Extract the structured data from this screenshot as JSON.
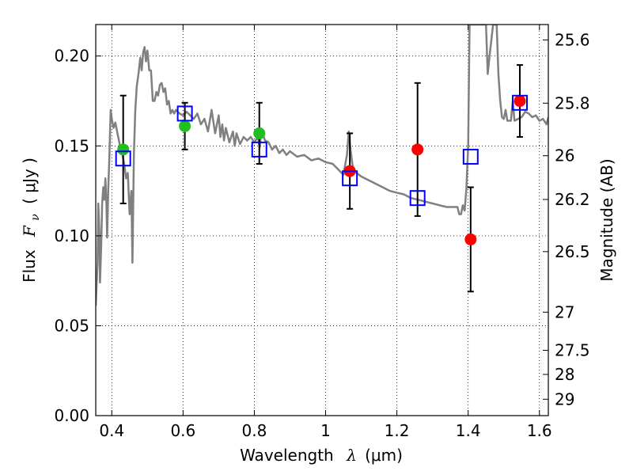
{
  "chart_data": {
    "type": "scatter",
    "xlabel": "Wavelength",
    "xlabel_symbol": "λ",
    "xlabel_unit": "(μm)",
    "ylabel": "Flux",
    "ylabel_symbol": "F",
    "ylabel_subscript": "ν",
    "ylabel_unit": "( μJy )",
    "ylabel_right": "Magnitude (AB)",
    "xlim": [
      0.355,
      1.625
    ],
    "ylim": [
      0.0,
      0.2175
    ],
    "grid": true,
    "x_ticks": [
      0.4,
      0.6,
      0.8,
      1.0,
      1.2,
      1.4,
      1.6
    ],
    "x_tick_labels": [
      "0.4",
      "0.6",
      "0.8",
      "1",
      "1.2",
      "1.4",
      "1.6"
    ],
    "y_ticks": [
      0.0,
      0.05,
      0.1,
      0.15,
      0.2
    ],
    "y_tick_labels": [
      "0.00",
      "0.05",
      "0.10",
      "0.15",
      "0.20"
    ],
    "mag_ticks": [
      "25.6",
      "25.8",
      "26",
      "26.2",
      "26.5",
      "27",
      "27.5",
      "28",
      "29"
    ],
    "colors": {
      "model": "#808080",
      "green": "#1fbf1f",
      "red": "#ff0000",
      "box": "#0000ff",
      "error": "#000000"
    },
    "series": [
      {
        "kind": "model-spectrum",
        "points": [
          [
            0.355,
            0.061
          ],
          [
            0.36,
            0.085
          ],
          [
            0.362,
            0.118
          ],
          [
            0.365,
            0.103
          ],
          [
            0.367,
            0.074
          ],
          [
            0.37,
            0.093
          ],
          [
            0.373,
            0.118
          ],
          [
            0.376,
            0.127
          ],
          [
            0.379,
            0.12
          ],
          [
            0.382,
            0.132
          ],
          [
            0.385,
            0.118
          ],
          [
            0.387,
            0.099
          ],
          [
            0.39,
            0.126
          ],
          [
            0.393,
            0.142
          ],
          [
            0.397,
            0.17
          ],
          [
            0.4,
            0.165
          ],
          [
            0.405,
            0.16
          ],
          [
            0.41,
            0.163
          ],
          [
            0.415,
            0.158
          ],
          [
            0.42,
            0.153
          ],
          [
            0.425,
            0.148
          ],
          [
            0.43,
            0.145
          ],
          [
            0.435,
            0.14
          ],
          [
            0.44,
            0.132
          ],
          [
            0.445,
            0.135
          ],
          [
            0.45,
            0.112
          ],
          [
            0.455,
            0.125
          ],
          [
            0.458,
            0.085
          ],
          [
            0.462,
            0.145
          ],
          [
            0.466,
            0.17
          ],
          [
            0.47,
            0.183
          ],
          [
            0.475,
            0.19
          ],
          [
            0.48,
            0.199
          ],
          [
            0.484,
            0.192
          ],
          [
            0.488,
            0.202
          ],
          [
            0.492,
            0.205
          ],
          [
            0.496,
            0.197
          ],
          [
            0.5,
            0.203
          ],
          [
            0.505,
            0.192
          ],
          [
            0.51,
            0.192
          ],
          [
            0.515,
            0.175
          ],
          [
            0.52,
            0.175
          ],
          [
            0.525,
            0.18
          ],
          [
            0.53,
            0.178
          ],
          [
            0.535,
            0.184
          ],
          [
            0.54,
            0.185
          ],
          [
            0.545,
            0.18
          ],
          [
            0.55,
            0.182
          ],
          [
            0.555,
            0.173
          ],
          [
            0.56,
            0.175
          ],
          [
            0.565,
            0.168
          ],
          [
            0.57,
            0.17
          ],
          [
            0.575,
            0.168
          ],
          [
            0.58,
            0.17
          ],
          [
            0.59,
            0.168
          ],
          [
            0.6,
            0.167
          ],
          [
            0.61,
            0.169
          ],
          [
            0.62,
            0.167
          ],
          [
            0.63,
            0.165
          ],
          [
            0.64,
            0.168
          ],
          [
            0.65,
            0.162
          ],
          [
            0.66,
            0.165
          ],
          [
            0.67,
            0.158
          ],
          [
            0.68,
            0.17
          ],
          [
            0.69,
            0.157
          ],
          [
            0.7,
            0.167
          ],
          [
            0.705,
            0.155
          ],
          [
            0.71,
            0.162
          ],
          [
            0.715,
            0.153
          ],
          [
            0.72,
            0.16
          ],
          [
            0.73,
            0.152
          ],
          [
            0.74,
            0.158
          ],
          [
            0.745,
            0.15
          ],
          [
            0.75,
            0.157
          ],
          [
            0.76,
            0.151
          ],
          [
            0.77,
            0.155
          ],
          [
            0.78,
            0.153
          ],
          [
            0.79,
            0.155
          ],
          [
            0.8,
            0.152
          ],
          [
            0.81,
            0.155
          ],
          [
            0.815,
            0.149
          ],
          [
            0.82,
            0.159
          ],
          [
            0.83,
            0.153
          ],
          [
            0.84,
            0.152
          ],
          [
            0.85,
            0.148
          ],
          [
            0.86,
            0.15
          ],
          [
            0.87,
            0.146
          ],
          [
            0.88,
            0.148
          ],
          [
            0.89,
            0.145
          ],
          [
            0.9,
            0.147
          ],
          [
            0.92,
            0.144
          ],
          [
            0.94,
            0.145
          ],
          [
            0.96,
            0.142
          ],
          [
            0.98,
            0.143
          ],
          [
            1.0,
            0.141
          ],
          [
            1.02,
            0.14
          ],
          [
            1.04,
            0.136
          ],
          [
            1.05,
            0.134
          ],
          [
            1.06,
            0.145
          ],
          [
            1.065,
            0.158
          ],
          [
            1.07,
            0.148
          ],
          [
            1.075,
            0.14
          ],
          [
            1.08,
            0.136
          ],
          [
            1.1,
            0.133
          ],
          [
            1.12,
            0.131
          ],
          [
            1.14,
            0.129
          ],
          [
            1.16,
            0.127
          ],
          [
            1.18,
            0.125
          ],
          [
            1.2,
            0.124
          ],
          [
            1.22,
            0.123
          ],
          [
            1.24,
            0.121
          ],
          [
            1.26,
            0.12
          ],
          [
            1.28,
            0.119
          ],
          [
            1.3,
            0.118
          ],
          [
            1.32,
            0.117
          ],
          [
            1.34,
            0.116
          ],
          [
            1.36,
            0.116
          ],
          [
            1.37,
            0.116
          ],
          [
            1.375,
            0.112
          ],
          [
            1.38,
            0.112
          ],
          [
            1.385,
            0.117
          ],
          [
            1.39,
            0.114
          ],
          [
            1.395,
            0.126
          ],
          [
            1.4,
            0.15
          ],
          [
            1.402,
            0.185
          ],
          [
            1.404,
            0.2175
          ],
          [
            1.45,
            0.2175
          ],
          [
            1.455,
            0.19
          ],
          [
            1.46,
            0.2
          ],
          [
            1.47,
            0.2175
          ],
          [
            1.48,
            0.2175
          ],
          [
            1.485,
            0.19
          ],
          [
            1.49,
            0.175
          ],
          [
            1.495,
            0.166
          ],
          [
            1.5,
            0.165
          ],
          [
            1.505,
            0.17
          ],
          [
            1.51,
            0.164
          ],
          [
            1.52,
            0.164
          ],
          [
            1.525,
            0.175
          ],
          [
            1.53,
            0.164
          ],
          [
            1.54,
            0.165
          ],
          [
            1.55,
            0.166
          ],
          [
            1.56,
            0.169
          ],
          [
            1.57,
            0.168
          ],
          [
            1.58,
            0.166
          ],
          [
            1.59,
            0.167
          ],
          [
            1.6,
            0.164
          ],
          [
            1.61,
            0.165
          ],
          [
            1.62,
            0.162
          ],
          [
            1.625,
            0.166
          ]
        ]
      },
      {
        "kind": "measured-green",
        "points": [
          {
            "x": 0.432,
            "y": 0.148,
            "err": 0.03
          },
          {
            "x": 0.605,
            "y": 0.161,
            "err": 0.013
          },
          {
            "x": 0.814,
            "y": 0.157,
            "err": 0.017
          }
        ]
      },
      {
        "kind": "measured-red",
        "points": [
          {
            "x": 1.068,
            "y": 0.136,
            "err": 0.021
          },
          {
            "x": 1.258,
            "y": 0.148,
            "err": 0.037
          },
          {
            "x": 1.407,
            "y": 0.098,
            "err": 0.029
          },
          {
            "x": 1.545,
            "y": 0.175,
            "err": 0.02
          }
        ]
      },
      {
        "kind": "model-photometry",
        "points": [
          {
            "x": 0.432,
            "y": 0.143
          },
          {
            "x": 0.605,
            "y": 0.168
          },
          {
            "x": 0.814,
            "y": 0.148
          },
          {
            "x": 1.068,
            "y": 0.132
          },
          {
            "x": 1.258,
            "y": 0.121
          },
          {
            "x": 1.407,
            "y": 0.144
          },
          {
            "x": 1.545,
            "y": 0.174
          }
        ]
      }
    ]
  }
}
